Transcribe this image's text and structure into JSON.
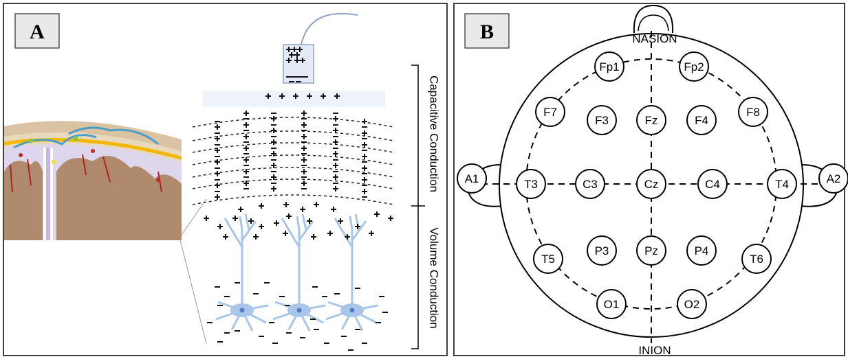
{
  "panel_a": {
    "label": "A",
    "capacitive_label": "Capacitive Conduction",
    "volume_label": "Volume Conduction"
  },
  "panel_b": {
    "label": "B",
    "nasion": "NASION",
    "inion": "INION",
    "electrodes": [
      "Fp1",
      "Fp2",
      "F7",
      "F3",
      "Fz",
      "F4",
      "F8",
      "A1",
      "T3",
      "C3",
      "Cz",
      "C4",
      "T4",
      "A2",
      "T5",
      "P3",
      "Pz",
      "P4",
      "T6",
      "O1",
      "O2"
    ]
  }
}
